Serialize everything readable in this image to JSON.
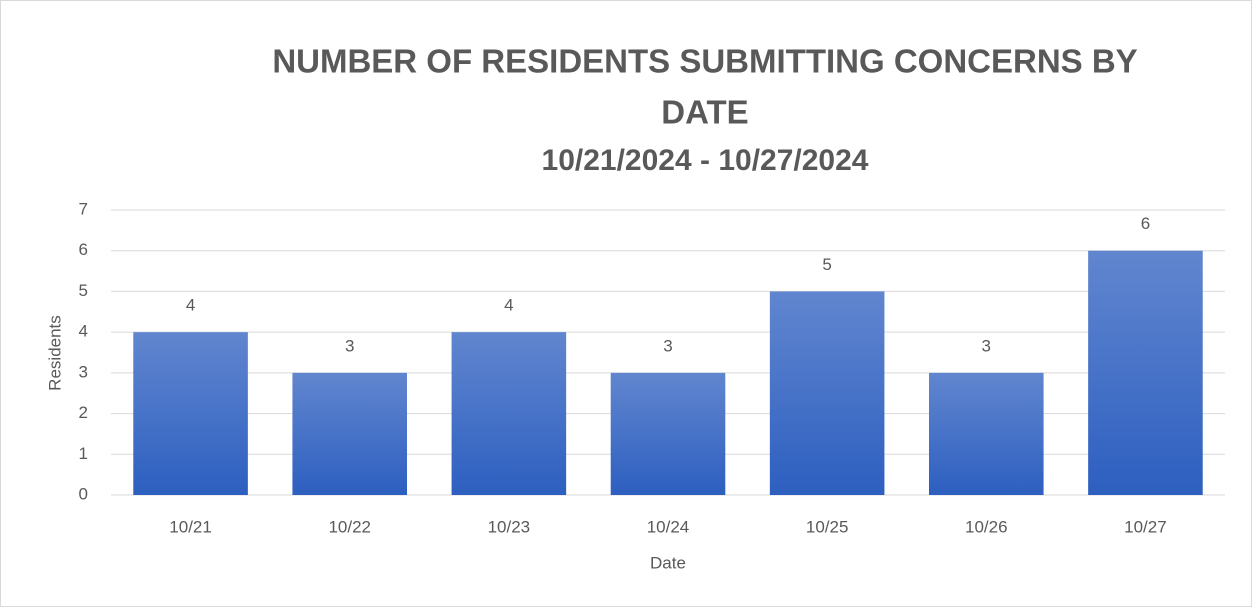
{
  "chart_data": {
    "type": "bar",
    "title": "NUMBER OF RESIDENTS SUBMITTING CONCERNS BY DATE",
    "subtitle": "10/21/2024 - 10/27/2024",
    "x_label": "Date",
    "y_label": "Residents",
    "categories": [
      "10/21",
      "10/22",
      "10/23",
      "10/24",
      "10/25",
      "10/26",
      "10/27"
    ],
    "values": [
      4,
      3,
      4,
      3,
      5,
      3,
      6
    ],
    "color": "#4472c4",
    "ylim": [
      0,
      7
    ],
    "yticks": [
      0,
      1,
      2,
      3,
      4,
      5,
      6,
      7
    ],
    "grid": true
  }
}
